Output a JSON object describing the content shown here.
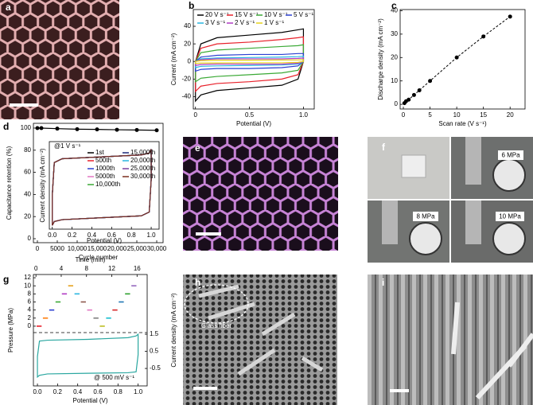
{
  "chart_data": [
    {
      "type": "line",
      "panel": "b",
      "xlabel": "Potential (V)",
      "ylabel": "Current (mA cm⁻²)",
      "xlim": [
        -0.02,
        1.1
      ],
      "xticks": [
        0,
        0.5,
        {
          "value": 1,
          "label": "1.0"
        }
      ],
      "ylim": [
        -54,
        59
      ],
      "yticks": [
        -40,
        -20,
        0,
        20,
        40
      ],
      "x": [
        0,
        0.05,
        0.2,
        0.5,
        0.8,
        0.95,
        1,
        1,
        0.95,
        0.8,
        0.5,
        0.2,
        0.05,
        0
      ],
      "series": [
        {
          "name": "20 V s⁻¹",
          "color": "#000000",
          "values": [
            0,
            20,
            27,
            30,
            33,
            36,
            37,
            0,
            -20,
            -27,
            -30,
            -33,
            -38,
            -45
          ]
        },
        {
          "name": "15 V s⁻¹",
          "color": "#e8202a",
          "values": [
            0,
            15,
            20,
            22,
            25,
            27,
            28,
            0,
            -15,
            -20,
            -23,
            -25,
            -28,
            -34
          ]
        },
        {
          "name": "10 V s⁻¹",
          "color": "#3aa935",
          "values": [
            0,
            10,
            13,
            15,
            17,
            18,
            19,
            0,
            -10,
            -13,
            -15,
            -17,
            -19,
            -23
          ]
        },
        {
          "name": "5 V s⁻¹",
          "color": "#2a3fd1",
          "values": [
            0,
            5,
            7,
            8,
            8,
            9,
            9,
            0,
            -5,
            -7,
            -8,
            -8,
            -9,
            -11
          ]
        },
        {
          "name": "3 V s⁻¹",
          "color": "#29b6e0",
          "values": [
            0,
            3,
            4,
            4.5,
            5,
            5.5,
            6,
            0,
            -3,
            -4,
            -4.5,
            -5,
            -5.5,
            -7
          ]
        },
        {
          "name": "2 V s⁻¹",
          "color": "#b03ac4",
          "values": [
            0,
            2,
            3,
            3,
            3,
            3.5,
            4,
            0,
            -2,
            -3,
            -3,
            -3,
            -3.5,
            -4.5
          ]
        },
        {
          "name": "1 V s⁻¹",
          "color": "#e6d21c",
          "values": [
            0,
            1,
            1.5,
            1.5,
            1.7,
            1.8,
            2,
            0,
            -1,
            -1.5,
            -1.5,
            -1.7,
            -1.8,
            -2.2
          ]
        }
      ]
    },
    {
      "type": "scatter",
      "panel": "c",
      "xlabel": "Scan rate (V s⁻¹)",
      "ylabel": "Discharge density (mA cm⁻²)",
      "xlim": [
        -0.6,
        22.8
      ],
      "xticks": [
        0,
        5,
        10,
        15,
        20
      ],
      "ylim": [
        -2,
        40.5
      ],
      "yticks": [
        0,
        10,
        20,
        30,
        40
      ],
      "line_style": "dashed",
      "x": [
        0.2,
        0.5,
        1,
        2,
        3,
        5,
        10,
        15,
        20
      ],
      "series": [
        {
          "color": "#000000",
          "values": [
            0.5,
            1.3,
            2,
            4,
            6,
            10,
            20,
            29,
            37.5
          ]
        }
      ]
    },
    {
      "type": "line",
      "panel": "d",
      "xlabel": "Cycle number",
      "ylabel": "Capacitance retention (%)",
      "xlim": [
        -1000,
        31600
      ],
      "xticks": [
        0,
        5000,
        {
          "value": 10000,
          "label": "10,000"
        },
        {
          "value": 15000,
          "label": "15,000"
        },
        {
          "value": 20000,
          "label": "20,000"
        },
        {
          "value": 25000,
          "label": "25,000"
        },
        {
          "value": 30000,
          "label": "30,000"
        }
      ],
      "ylim": [
        -3.6,
        104.3
      ],
      "yticks": [
        0,
        20,
        40,
        60,
        80,
        100
      ],
      "x": [
        0,
        1000,
        5000,
        10000,
        15000,
        20000,
        25000,
        30000
      ],
      "series": [
        {
          "color": "#000000",
          "markers": true,
          "values": [
            100,
            100,
            99.5,
            99,
            98.8,
            98.5,
            98.3,
            98
          ]
        }
      ]
    },
    {
      "type": "line",
      "xlabel": "Potential (V)",
      "ylabel": "Current density (mA cm⁻²)",
      "annotation": "@1 V s⁻¹",
      "xlim": [
        -0.03,
        1.08
      ],
      "xticks": [
        {
          "value": 0,
          "label": "0.0"
        },
        0.2,
        0.4,
        0.6,
        0.8,
        {
          "value": 1,
          "label": "1.0"
        }
      ],
      "ylim": [
        -1.1,
        1.2
      ],
      "x": [
        0,
        0.02,
        0.1,
        0.5,
        0.9,
        0.98,
        1,
        1,
        0.98,
        0.9,
        0.5,
        0.1,
        0.02,
        0
      ],
      "series": [
        {
          "name": "1st",
          "color": "#000000",
          "values": [
            -0.2,
            0.65,
            0.75,
            0.8,
            0.85,
            0.9,
            1,
            0.2,
            -0.65,
            -0.75,
            -0.8,
            -0.85,
            -0.9,
            -1
          ]
        },
        {
          "name": "500th",
          "color": "#e8202a",
          "values": [
            -0.2,
            0.65,
            0.75,
            0.8,
            0.85,
            0.9,
            1,
            0.2,
            -0.65,
            -0.75,
            -0.8,
            -0.85,
            -0.9,
            -1
          ]
        },
        {
          "name": "1000th",
          "color": "#2a3fd1",
          "values": [
            -0.2,
            0.65,
            0.75,
            0.8,
            0.85,
            0.9,
            1,
            0.2,
            -0.65,
            -0.75,
            -0.8,
            -0.85,
            -0.9,
            -1
          ]
        },
        {
          "name": "5000th",
          "color": "#e377c2",
          "values": [
            -0.2,
            0.65,
            0.75,
            0.8,
            0.85,
            0.9,
            1,
            0.2,
            -0.65,
            -0.75,
            -0.8,
            -0.85,
            -0.9,
            -1
          ]
        },
        {
          "name": "10,000th",
          "color": "#3aa935",
          "values": [
            -0.2,
            0.65,
            0.75,
            0.8,
            0.85,
            0.9,
            1,
            0.2,
            -0.65,
            -0.75,
            -0.8,
            -0.85,
            -0.9,
            -1
          ]
        },
        {
          "name": "15,000th",
          "color": "#1d2a7a",
          "values": [
            -0.2,
            0.65,
            0.75,
            0.8,
            0.85,
            0.9,
            1,
            0.2,
            -0.65,
            -0.75,
            -0.8,
            -0.85,
            -0.9,
            -1
          ]
        },
        {
          "name": "20,000th",
          "color": "#29b6e0",
          "values": [
            -0.2,
            0.65,
            0.75,
            0.8,
            0.85,
            0.9,
            1,
            0.2,
            -0.65,
            -0.75,
            -0.8,
            -0.85,
            -0.9,
            -1
          ]
        },
        {
          "name": "25,000th",
          "color": "#7b3fa0",
          "values": [
            -0.2,
            0.65,
            0.75,
            0.8,
            0.85,
            0.9,
            1,
            0.2,
            -0.65,
            -0.75,
            -0.8,
            -0.85,
            -0.9,
            -1
          ]
        },
        {
          "name": "30,000th",
          "color": "#7a2e1e",
          "values": [
            -0.2,
            0.65,
            0.75,
            0.8,
            0.85,
            0.9,
            1,
            0.2,
            -0.65,
            -0.75,
            -0.8,
            -0.85,
            -0.9,
            -1
          ]
        }
      ]
    },
    {
      "type": "line",
      "panel": "g",
      "xlabel": "Potential (V)",
      "x2label": "Time (min)",
      "ylabel": "Pressure (MPa)",
      "y2label": "Current density (mA cm⁻²)",
      "annotation": "@ 500 mV s⁻¹",
      "xlim": [
        -0.04,
        1.09
      ],
      "xticks": [
        {
          "value": 0,
          "label": "0.0"
        },
        0.2,
        0.4,
        0.6,
        0.8,
        {
          "value": 1,
          "label": "1.0"
        }
      ],
      "x2lim": [
        -0.4,
        17.6
      ],
      "x2ticks": [
        0,
        4,
        8,
        12,
        16
      ],
      "ylim": [
        -14.8,
        12.8
      ],
      "yticks": [
        0,
        2,
        4,
        6,
        8,
        10,
        12
      ],
      "y2lim": [
        -1.52,
        4.99
      ],
      "y2ticks": [
        -0.5,
        0.5,
        1.5
      ],
      "series": [
        {
          "style": "segments",
          "xaxis": "x2",
          "x": [
            0.5,
            1.5,
            2.5,
            3.5,
            4.5,
            5.5,
            6.5,
            7.5,
            8.5,
            9.5,
            10.5,
            11.5,
            12.5,
            13.5,
            14.5,
            15.5
          ],
          "values": [
            0,
            2,
            4,
            6,
            8,
            10,
            8,
            6,
            4,
            2,
            0,
            2,
            4,
            6,
            8,
            10
          ],
          "colors": [
            "#e8202a",
            "#ff7f0e",
            "#2a3fd1",
            "#3aa935",
            "#b03ac4",
            "#e6a21c",
            "#29b6e0",
            "#8c564b",
            "#e377c2",
            "#7f7f7f",
            "#bcbd22",
            "#17becf",
            "#d62728",
            "#1f77b4",
            "#2ca02c",
            "#9467bd"
          ]
        },
        {
          "axis": "y2",
          "color": "#2aa7a0",
          "x": [
            0,
            0.02,
            0.1,
            0.5,
            0.9,
            0.98,
            1,
            1,
            0.98,
            0.9,
            0.5,
            0.1,
            0.02,
            0
          ],
          "values": [
            0.2,
            1.1,
            1.15,
            1.2,
            1.3,
            1.4,
            1.5,
            0.3,
            -0.7,
            -0.75,
            -0.78,
            -0.82,
            -0.9,
            -1.0
          ]
        }
      ]
    }
  ],
  "images": [
    {
      "panel": "a"
    },
    {
      "panel": "e"
    },
    {
      "panel": "f",
      "labels": [
        "6 MPa",
        "8 MPa",
        "10 MPa"
      ]
    },
    {
      "panel": "h",
      "annotation": "Glass fiber"
    },
    {
      "panel": "i"
    }
  ]
}
